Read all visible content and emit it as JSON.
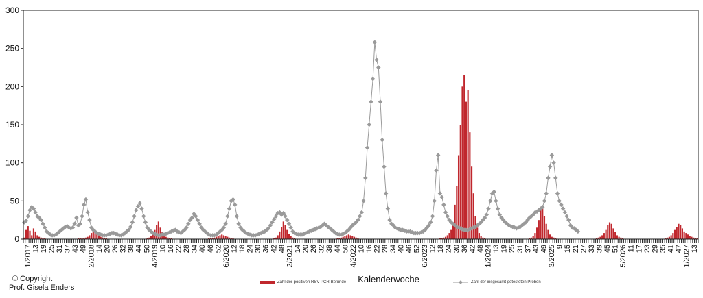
{
  "chart_data": {
    "type": "bar+line",
    "xlabel": "Kalenderwoche",
    "ylabel": "",
    "ylim": [
      0,
      300
    ],
    "yticks": [
      0,
      50,
      100,
      150,
      200,
      250,
      300
    ],
    "grid": false,
    "legend_position": "bottom",
    "colors": {
      "bars": "#c0272d",
      "line": "#9a9a9a"
    },
    "x_tick_labels": [
      "1/2017",
      "13",
      "19",
      "25",
      "31",
      "37",
      "43",
      "49",
      "2/2018",
      "14",
      "20",
      "26",
      "32",
      "38",
      "44",
      "50",
      "4/2019",
      "10",
      "16",
      "22",
      "28",
      "34",
      "40",
      "46",
      "52",
      "6/2020",
      "12",
      "18",
      "24",
      "30",
      "36",
      "42",
      "48",
      "2/2021",
      "14",
      "20",
      "26",
      "32",
      "38",
      "44",
      "50",
      "4/2022",
      "10",
      "16",
      "22",
      "28",
      "34",
      "40",
      "46",
      "52",
      "6/2023",
      "12",
      "18",
      "24",
      "30",
      "36",
      "42",
      "48",
      "1/2024",
      "13",
      "19",
      "25",
      "31",
      "37",
      "43",
      "49",
      "3/2025",
      "9",
      "15",
      "21",
      "27",
      "33",
      "39",
      "45",
      "51",
      "5/2026",
      "11",
      "17",
      "23",
      "29",
      "35",
      "41",
      "47",
      "1/2027",
      "13"
    ],
    "series": [
      {
        "name": "Zahl der positiven RSV-PCR-Befunde",
        "type": "bar",
        "values": [
          2,
          12,
          17,
          11,
          5,
          14,
          10,
          5,
          3,
          2,
          1,
          1,
          0,
          0,
          0,
          0,
          0,
          0,
          0,
          0,
          0,
          0,
          0,
          0,
          0,
          0,
          0,
          0,
          0,
          1,
          1,
          1,
          1,
          2,
          3,
          5,
          8,
          10,
          9,
          7,
          5,
          3,
          2,
          1,
          1,
          0,
          0,
          0,
          0,
          0,
          0,
          0,
          0,
          0,
          0,
          0,
          0,
          0,
          0,
          0,
          0,
          0,
          0,
          0,
          0,
          0,
          1,
          2,
          4,
          7,
          12,
          18,
          23,
          15,
          9,
          6,
          3,
          2,
          1,
          1,
          0,
          0,
          0,
          0,
          0,
          0,
          0,
          0,
          0,
          0,
          0,
          0,
          0,
          0,
          0,
          0,
          0,
          0,
          0,
          1,
          1,
          1,
          2,
          3,
          4,
          5,
          6,
          5,
          4,
          3,
          2,
          1,
          1,
          0,
          0,
          0,
          0,
          0,
          0,
          0,
          0,
          0,
          0,
          0,
          0,
          0,
          0,
          0,
          0,
          0,
          0,
          0,
          0,
          0,
          1,
          2,
          5,
          10,
          16,
          23,
          18,
          12,
          7,
          4,
          2,
          1,
          0,
          0,
          0,
          0,
          0,
          0,
          0,
          0,
          0,
          0,
          0,
          0,
          0,
          0,
          0,
          0,
          0,
          0,
          0,
          0,
          0,
          0,
          1,
          1,
          2,
          3,
          4,
          5,
          6,
          5,
          4,
          3,
          2,
          1,
          0,
          0,
          0,
          0,
          0,
          0,
          0,
          0,
          0,
          0,
          0,
          0,
          0,
          0,
          0,
          0,
          0,
          0,
          0,
          0,
          0,
          0,
          0,
          0,
          0,
          0,
          0,
          0,
          0,
          0,
          0,
          0,
          0,
          0,
          0,
          0,
          0,
          0,
          0,
          0,
          0,
          0,
          0,
          1,
          1,
          2,
          3,
          5,
          8,
          12,
          20,
          45,
          70,
          110,
          150,
          200,
          215,
          180,
          195,
          140,
          95,
          60,
          30,
          15,
          8,
          4,
          2,
          1,
          0,
          0,
          0,
          0,
          0,
          0,
          0,
          0,
          0,
          0,
          0,
          0,
          0,
          0,
          0,
          0,
          0,
          0,
          0,
          0,
          0,
          0,
          0,
          1,
          2,
          4,
          8,
          15,
          25,
          42,
          43,
          30,
          20,
          12,
          6,
          3,
          2,
          1,
          0,
          0,
          0,
          0,
          0,
          0,
          0,
          0,
          0,
          0,
          0,
          0,
          0,
          0,
          0,
          0,
          0,
          0,
          0,
          0,
          0,
          1,
          2,
          3,
          5,
          8,
          12,
          18,
          22,
          20,
          14,
          9,
          5,
          3,
          2,
          1,
          0,
          0,
          0,
          0,
          0,
          0,
          0,
          0,
          0,
          0,
          0,
          0,
          0,
          0,
          0,
          0,
          0,
          0,
          0,
          0,
          0,
          0,
          1,
          2,
          3,
          5,
          8,
          12,
          16,
          20,
          18,
          14,
          10,
          8,
          6,
          4,
          3,
          2,
          1,
          1
        ]
      },
      {
        "name": "Zahl der insgesamt getesteten Proben",
        "type": "line",
        "values": [
          22,
          24,
          30,
          38,
          42,
          40,
          35,
          30,
          28,
          25,
          20,
          15,
          10,
          8,
          6,
          5,
          5,
          6,
          8,
          10,
          12,
          14,
          16,
          17,
          15,
          14,
          15,
          20,
          28,
          18,
          20,
          30,
          45,
          52,
          35,
          25,
          15,
          12,
          10,
          8,
          7,
          6,
          5,
          5,
          5,
          6,
          7,
          8,
          8,
          7,
          6,
          5,
          5,
          6,
          8,
          10,
          12,
          16,
          22,
          30,
          38,
          43,
          47,
          40,
          30,
          22,
          15,
          12,
          10,
          8,
          7,
          6,
          5,
          5,
          6,
          6,
          7,
          8,
          9,
          10,
          11,
          12,
          10,
          9,
          8,
          10,
          12,
          15,
          20,
          25,
          28,
          33,
          30,
          25,
          20,
          15,
          12,
          10,
          8,
          6,
          5,
          5,
          5,
          6,
          8,
          10,
          12,
          15,
          20,
          30,
          40,
          50,
          52,
          45,
          30,
          20,
          15,
          12,
          10,
          8,
          7,
          6,
          5,
          5,
          5,
          6,
          7,
          8,
          9,
          10,
          12,
          14,
          18,
          22,
          26,
          30,
          34,
          35,
          32,
          34,
          30,
          25,
          20,
          15,
          10,
          8,
          7,
          6,
          6,
          6,
          7,
          8,
          9,
          10,
          11,
          12,
          13,
          14,
          15,
          16,
          18,
          20,
          18,
          16,
          14,
          12,
          10,
          8,
          7,
          6,
          6,
          7,
          8,
          10,
          12,
          15,
          18,
          20,
          22,
          25,
          30,
          35,
          50,
          80,
          120,
          150,
          180,
          210,
          258,
          235,
          225,
          180,
          130,
          95,
          60,
          40,
          25,
          20,
          18,
          15,
          14,
          13,
          12,
          12,
          11,
          10,
          10,
          10,
          9,
          8,
          8,
          8,
          8,
          9,
          10,
          12,
          15,
          18,
          22,
          30,
          50,
          90,
          110,
          60,
          55,
          45,
          35,
          30,
          25,
          22,
          20,
          18,
          16,
          15,
          14,
          13,
          12,
          12,
          12,
          13,
          14,
          15,
          16,
          18,
          20,
          22,
          25,
          28,
          32,
          40,
          50,
          60,
          62,
          50,
          40,
          32,
          28,
          25,
          22,
          20,
          18,
          17,
          16,
          15,
          14,
          15,
          16,
          18,
          20,
          22,
          25,
          28,
          30,
          32,
          35,
          36,
          38,
          40,
          42,
          50,
          60,
          80,
          95,
          110,
          100,
          80,
          60,
          50,
          45,
          40,
          35,
          30,
          25,
          18,
          15,
          14,
          12,
          10
        ]
      }
    ]
  },
  "footer": {
    "copyright_line1": "© Copyright",
    "copyright_line2": "Prof. Gisela Enders"
  }
}
